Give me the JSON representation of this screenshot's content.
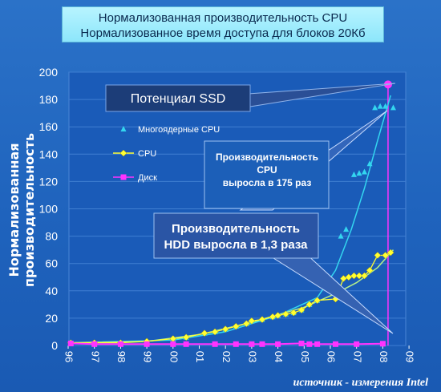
{
  "header": {
    "title_line1": "Нормализованная производительность CPU",
    "title_line2": "Нормализованное время доступа для блоков 20Кб"
  },
  "source_note": "источник - измерения Intel",
  "annotations": {
    "ssd": "Потенциал SSD",
    "cpu_growth": [
      "Производительность",
      "CPU",
      "выросла в 175 раз"
    ],
    "hdd_growth": [
      "Производительность",
      "HDD выросла в 1,3 раза"
    ]
  },
  "colors": {
    "background": "#1f63bd",
    "plot_area": "#1a5bb8",
    "multicore": "#33d6f0",
    "cpu": "#ffff33",
    "disk": "#ff33ff",
    "ssd_box": "#1c3d78",
    "cpu_box": "#1c5fb8",
    "hdd_box": "#2a55a5"
  },
  "chart_data": {
    "type": "scatter",
    "title": "Нормализованная производительность CPU\nНормализованное время доступа для блоков 20Кб",
    "ylabel": "Нормализованная производительность",
    "xlabel": "",
    "xlim": [
      96,
      109
    ],
    "ylim": [
      0,
      200
    ],
    "x_tick_labels": [
      "96",
      "97",
      "98",
      "99",
      "00",
      "01",
      "02",
      "03",
      "04",
      "05",
      "06",
      "07",
      "08",
      "09"
    ],
    "y_ticks": [
      0,
      20,
      40,
      60,
      80,
      100,
      120,
      140,
      160,
      180,
      200
    ],
    "legend_position": "top-left",
    "series": [
      {
        "name": "Многоядерные CPU",
        "marker": "triangle",
        "points": [
          [
            96.1,
            2
          ],
          [
            97,
            2
          ],
          [
            98,
            2
          ],
          [
            99,
            3
          ],
          [
            100,
            5
          ],
          [
            100.5,
            6
          ],
          [
            101.2,
            9
          ],
          [
            101.6,
            10
          ],
          [
            102,
            12
          ],
          [
            102.4,
            14
          ],
          [
            102.8,
            16
          ],
          [
            103,
            18
          ],
          [
            103.4,
            19
          ],
          [
            103.8,
            21
          ],
          [
            104,
            22
          ],
          [
            104.3,
            23
          ],
          [
            104.6,
            24
          ],
          [
            104.9,
            26
          ],
          [
            105.2,
            30
          ],
          [
            105.5,
            33
          ],
          [
            106.2,
            35
          ],
          [
            106.4,
            80
          ],
          [
            106.6,
            85
          ],
          [
            106.9,
            125
          ],
          [
            107.1,
            126
          ],
          [
            107.3,
            127
          ],
          [
            107.5,
            133
          ],
          [
            107.7,
            174
          ],
          [
            107.9,
            175
          ],
          [
            108.1,
            175
          ],
          [
            108.4,
            174
          ]
        ]
      },
      {
        "name": "CPU",
        "marker": "diamond",
        "points": [
          [
            96.1,
            2
          ],
          [
            97,
            2
          ],
          [
            98,
            2
          ],
          [
            99,
            3
          ],
          [
            100,
            5
          ],
          [
            100.5,
            6
          ],
          [
            101.2,
            9
          ],
          [
            101.6,
            10
          ],
          [
            102,
            12
          ],
          [
            102.4,
            14
          ],
          [
            102.8,
            16
          ],
          [
            103,
            18
          ],
          [
            103.4,
            19
          ],
          [
            103.8,
            21
          ],
          [
            104,
            22
          ],
          [
            104.3,
            23
          ],
          [
            104.6,
            24
          ],
          [
            104.9,
            26
          ],
          [
            105.2,
            30
          ],
          [
            105.5,
            33
          ],
          [
            106.2,
            34
          ],
          [
            106.5,
            49
          ],
          [
            106.7,
            50
          ],
          [
            106.9,
            51
          ],
          [
            107.1,
            51
          ],
          [
            107.3,
            51
          ],
          [
            107.5,
            55
          ],
          [
            107.8,
            66
          ],
          [
            108.1,
            66
          ],
          [
            108.3,
            68
          ]
        ]
      },
      {
        "name": "Диск",
        "marker": "square",
        "points": [
          [
            96.1,
            1.5
          ],
          [
            97,
            1
          ],
          [
            98,
            1
          ],
          [
            99,
            1
          ],
          [
            100,
            1
          ],
          [
            100.5,
            1
          ],
          [
            101.6,
            1
          ],
          [
            102.4,
            1
          ],
          [
            103,
            1
          ],
          [
            103.4,
            1
          ],
          [
            104,
            1
          ],
          [
            104.9,
            1.5
          ],
          [
            105.2,
            1
          ],
          [
            105.5,
            1
          ],
          [
            106.2,
            1
          ],
          [
            107,
            1
          ],
          [
            108,
            1.3
          ]
        ]
      }
    ],
    "trendlines": [
      {
        "name": "multicore-trend",
        "points": [
          [
            96,
            2
          ],
          [
            100,
            4
          ],
          [
            102,
            10
          ],
          [
            104,
            22
          ],
          [
            105.5,
            35
          ],
          [
            106.2,
            55
          ],
          [
            106.8,
            85
          ],
          [
            107.3,
            115
          ],
          [
            107.8,
            150
          ],
          [
            108.3,
            183
          ]
        ]
      },
      {
        "name": "cpu-trend",
        "points": [
          [
            96,
            2
          ],
          [
            99,
            3
          ],
          [
            101,
            8
          ],
          [
            103,
            17
          ],
          [
            105,
            28
          ],
          [
            106.2,
            38
          ],
          [
            107,
            46
          ],
          [
            107.8,
            57
          ],
          [
            108.4,
            70
          ]
        ]
      }
    ],
    "ssd_point": [
      108.2,
      191
    ]
  }
}
